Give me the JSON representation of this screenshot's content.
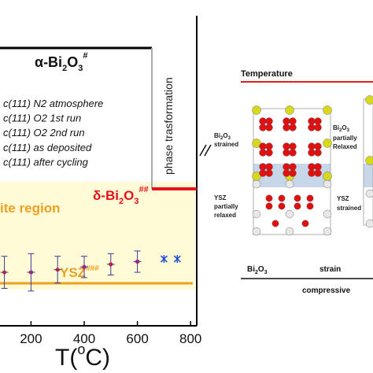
{
  "chart_data": {
    "type": "scatter",
    "xlim": [
      -100,
      900
    ],
    "x_ticks": [
      "200",
      "400",
      "600",
      "800"
    ],
    "xlabel": {
      "base": "T(",
      "sup": "o",
      "tail": "C)"
    },
    "series": [
      {
        "name": "c(111) N2 atmosphere",
        "color": "#1a1a1a",
        "marker": "square",
        "x": [],
        "y": []
      },
      {
        "name": "c(111) O2 1st run",
        "color": "#d62728",
        "marker": "circle",
        "x": [],
        "y": []
      },
      {
        "name": "c(111) O2 2nd run",
        "color": "#1f4fd1",
        "marker": "triangle-up",
        "x": [],
        "y": []
      },
      {
        "name": "c(111) as deposited",
        "color": "#d4a017",
        "marker": "triangle-down",
        "x": [],
        "y": []
      },
      {
        "name": "c(111) after cycling",
        "color": "#7b2cbf",
        "marker": "star",
        "x": [],
        "y": []
      }
    ],
    "markers": [
      {
        "series": "c(111) O2 1st run",
        "x": 0,
        "y": 0.52,
        "err": 0.035
      },
      {
        "series": "c(111) O2 1st run",
        "x": 100,
        "y": 0.52,
        "err": 0.03
      },
      {
        "series": "c(111) O2 1st run",
        "x": 200,
        "y": 0.52,
        "err": 0.035
      },
      {
        "series": "c(111) O2 1st run",
        "x": 300,
        "y": 0.525,
        "err": 0.025
      },
      {
        "series": "c(111) O2 1st run",
        "x": 400,
        "y": 0.53,
        "err": 0.02
      },
      {
        "series": "c(111) O2 1st run",
        "x": 500,
        "y": 0.535,
        "err": 0.02
      },
      {
        "series": "c(111) O2 1st run",
        "x": 600,
        "y": 0.54,
        "err": 0.02
      },
      {
        "series": "c(111) O2 2nd run",
        "x": 700,
        "y": 0.545,
        "err": 0.0
      },
      {
        "series": "c(111) O2 2nd run",
        "x": 750,
        "y": 0.545,
        "err": 0.0
      },
      {
        "series": "c(111) after cycling",
        "x": 200,
        "y": 0.52,
        "err": 0.0
      },
      {
        "series": "c(111) after cycling",
        "x": 400,
        "y": 0.53,
        "err": 0.0
      },
      {
        "series": "c(111) after cycling",
        "x": 600,
        "y": 0.54,
        "err": 0.0
      }
    ],
    "ylim": [
      0.42,
      1.0
    ],
    "regions": {
      "alpha": {
        "label": "α-Bi",
        "sub": "2",
        "o": "O",
        "sub2": "3",
        "sup": "#",
        "y": 0.93,
        "x_end": 700
      },
      "delta": {
        "label": "δ-Bi",
        "sub": "2",
        "o": "O",
        "sub2": "3",
        "sup": "##",
        "y": 0.63,
        "x_start": 700,
        "x_end": 880
      },
      "composite": {
        "label": "ite region"
      },
      "ysz": {
        "label": "YSZ",
        "sup": "###",
        "y": 0.46
      }
    },
    "transition_label": "phase trasformation"
  },
  "schematic": {
    "title": "Temperature",
    "left_top_label": "Bi₂O₃ strained",
    "left_top_lines": [
      "Bi",
      "2",
      "O",
      "3",
      "strained"
    ],
    "mid_top_lines": [
      "Bi",
      "2",
      "O",
      "3",
      "partially",
      "Relaxed"
    ],
    "left_bottom_lines": [
      "YSZ",
      "partially",
      "relaxed"
    ],
    "mid_bottom_lines": [
      "YSZ",
      "strained"
    ],
    "bottom_left": [
      "Bi",
      "2",
      "O",
      "3"
    ],
    "bottom_strain": "strain",
    "bottom_compressive": "compressive",
    "colors": {
      "red_atom": "#e01010",
      "yellow_atom": "#d8d81c",
      "white_atom": "#e8e8e8",
      "band": "#c8d6ea",
      "title_line": "#e02020"
    }
  }
}
